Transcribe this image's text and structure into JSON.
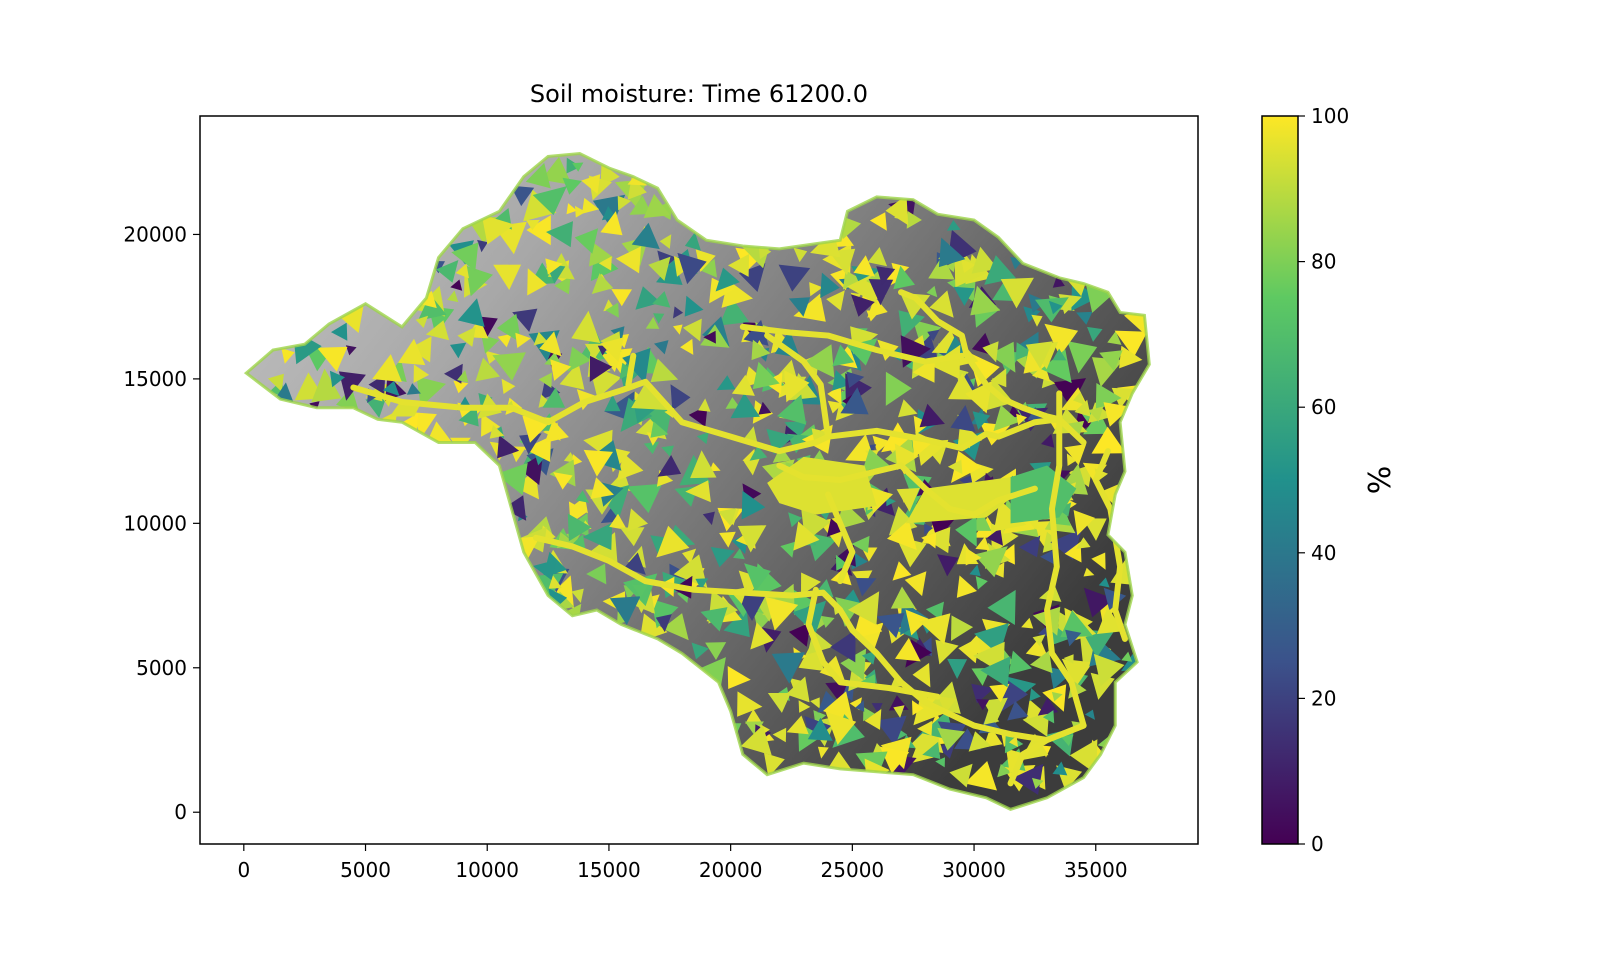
{
  "chart_data": {
    "type": "heatmap",
    "title": "Soil moisture: Time 61200.0",
    "xlabel": "",
    "ylabel": "",
    "xlim": [
      -1800,
      39200
    ],
    "ylim": [
      -1100,
      24100
    ],
    "x_ticks": [
      0,
      5000,
      10000,
      15000,
      20000,
      25000,
      30000,
      35000
    ],
    "y_ticks": [
      0,
      5000,
      10000,
      15000,
      20000
    ],
    "colorbar": {
      "label": "%",
      "colormap": "viridis",
      "range": [
        0,
        100
      ],
      "ticks": [
        0,
        20,
        40,
        60,
        80,
        100
      ],
      "colors": [
        "#440154",
        "#3b528b",
        "#21918c",
        "#5ec962",
        "#fde725"
      ]
    },
    "background": "grayscale elevation shading",
    "watershed_outline": [
      [
        100,
        15200
      ],
      [
        1200,
        16000
      ],
      [
        2500,
        16200
      ],
      [
        3500,
        16900
      ],
      [
        5000,
        17600
      ],
      [
        6500,
        16800
      ],
      [
        7500,
        17800
      ],
      [
        8000,
        19200
      ],
      [
        9000,
        20200
      ],
      [
        10500,
        20800
      ],
      [
        11500,
        22000
      ],
      [
        12500,
        22700
      ],
      [
        13800,
        22800
      ],
      [
        15000,
        22300
      ],
      [
        16000,
        22000
      ],
      [
        17000,
        21600
      ],
      [
        17800,
        20500
      ],
      [
        19000,
        19800
      ],
      [
        20500,
        19600
      ],
      [
        22000,
        19500
      ],
      [
        24500,
        19800
      ],
      [
        24800,
        20800
      ],
      [
        26000,
        21300
      ],
      [
        27500,
        21200
      ],
      [
        28500,
        20700
      ],
      [
        30000,
        20500
      ],
      [
        31000,
        19900
      ],
      [
        32000,
        19000
      ],
      [
        33500,
        18500
      ],
      [
        34500,
        18300
      ],
      [
        35500,
        18000
      ],
      [
        36000,
        17300
      ],
      [
        37000,
        17200
      ],
      [
        37200,
        15500
      ],
      [
        36500,
        14500
      ],
      [
        36000,
        13500
      ],
      [
        36200,
        11800
      ],
      [
        35800,
        11000
      ],
      [
        35500,
        9600
      ],
      [
        36200,
        9000
      ],
      [
        36500,
        7500
      ],
      [
        36200,
        6500
      ],
      [
        36700,
        5200
      ],
      [
        35800,
        4500
      ],
      [
        35800,
        3000
      ],
      [
        35200,
        2000
      ],
      [
        34500,
        1200
      ],
      [
        33000,
        500
      ],
      [
        31500,
        100
      ],
      [
        30500,
        500
      ],
      [
        29000,
        800
      ],
      [
        27500,
        1300
      ],
      [
        26000,
        1400
      ],
      [
        24500,
        1500
      ],
      [
        23000,
        1700
      ],
      [
        21500,
        1300
      ],
      [
        20500,
        2000
      ],
      [
        20000,
        3500
      ],
      [
        19500,
        4500
      ],
      [
        18000,
        5500
      ],
      [
        17000,
        6000
      ],
      [
        15500,
        6500
      ],
      [
        14500,
        7000
      ],
      [
        13500,
        6800
      ],
      [
        12500,
        7500
      ],
      [
        11500,
        9000
      ],
      [
        11000,
        10500
      ],
      [
        10500,
        12000
      ],
      [
        9500,
        12800
      ],
      [
        8000,
        12800
      ],
      [
        6500,
        13500
      ],
      [
        5500,
        13600
      ],
      [
        4500,
        14000
      ],
      [
        3000,
        14000
      ],
      [
        1500,
        14300
      ],
      [
        100,
        15200
      ]
    ],
    "streams": [
      [
        [
          4500,
          14700
        ],
        [
          6500,
          14200
        ],
        [
          9000,
          14000
        ],
        [
          11000,
          14000
        ],
        [
          12500,
          13500
        ],
        [
          14000,
          14200
        ],
        [
          15500,
          14600
        ],
        [
          16500,
          14900
        ],
        [
          18000,
          13500
        ],
        [
          20000,
          13000
        ],
        [
          22000,
          12500
        ],
        [
          23500,
          12800
        ],
        [
          24000,
          13000
        ],
        [
          26000,
          13200
        ],
        [
          28000,
          12900
        ],
        [
          29500,
          12600
        ],
        [
          30500,
          13100
        ],
        [
          31000,
          13000
        ],
        [
          32500,
          13500
        ],
        [
          33500,
          13600
        ],
        [
          34500,
          12800
        ]
      ],
      [
        [
          16000,
          15800
        ],
        [
          15800,
          14800
        ]
      ],
      [
        [
          21500,
          16500
        ],
        [
          23000,
          15600
        ],
        [
          23700,
          14800
        ],
        [
          24000,
          13000
        ]
      ],
      [
        [
          27000,
          18000
        ],
        [
          27600,
          17800
        ],
        [
          28500,
          17000
        ],
        [
          29500,
          16500
        ],
        [
          29700,
          15800
        ],
        [
          30500,
          14800
        ],
        [
          31200,
          14300
        ],
        [
          32000,
          14000
        ],
        [
          33000,
          13700
        ],
        [
          33500,
          13600
        ]
      ],
      [
        [
          20500,
          16800
        ],
        [
          22500,
          16600
        ],
        [
          24000,
          16500
        ],
        [
          26000,
          16000
        ],
        [
          28000,
          15600
        ],
        [
          29500,
          15800
        ]
      ],
      [
        [
          12000,
          9500
        ],
        [
          13500,
          9200
        ],
        [
          15000,
          8700
        ],
        [
          16500,
          8000
        ],
        [
          18500,
          7700
        ],
        [
          20500,
          7600
        ],
        [
          22500,
          7500
        ],
        [
          23800,
          7600
        ],
        [
          24500,
          7000
        ],
        [
          25000,
          6300
        ],
        [
          26000,
          5500
        ],
        [
          27000,
          4500
        ],
        [
          28000,
          3800
        ],
        [
          30000,
          3000
        ],
        [
          31500,
          2700
        ],
        [
          33000,
          2500
        ],
        [
          34500,
          3000
        ]
      ],
      [
        [
          23500,
          7700
        ],
        [
          23200,
          6500
        ],
        [
          23800,
          5200
        ],
        [
          24500,
          4500
        ],
        [
          26500,
          4300
        ],
        [
          28500,
          4000
        ]
      ],
      [
        [
          24000,
          11000
        ],
        [
          24500,
          10000
        ],
        [
          25000,
          9000
        ],
        [
          24500,
          8000
        ]
      ],
      [
        [
          33500,
          14500
        ],
        [
          33500,
          12000
        ],
        [
          33200,
          10500
        ],
        [
          33400,
          8500
        ],
        [
          33000,
          7000
        ],
        [
          33200,
          5500
        ],
        [
          34000,
          4500
        ],
        [
          34500,
          3000
        ],
        [
          33000,
          2500
        ],
        [
          32000,
          2000
        ],
        [
          31500,
          1000
        ]
      ],
      [
        [
          35500,
          12500
        ],
        [
          35000,
          11500
        ],
        [
          35600,
          10500
        ],
        [
          36000,
          8500
        ],
        [
          35800,
          7000
        ],
        [
          36200,
          6000
        ]
      ],
      [
        [
          22000,
          12000
        ],
        [
          23000,
          11600
        ],
        [
          24500,
          11500
        ],
        [
          26000,
          11800
        ],
        [
          27000,
          12000
        ],
        [
          28000,
          11200
        ],
        [
          29000,
          10500
        ],
        [
          30000,
          10300
        ],
        [
          31000,
          10800
        ],
        [
          32500,
          11200
        ]
      ]
    ],
    "wet_patches": [
      {
        "x": [
          21500,
          23000,
          25500,
          26000,
          23500,
          22000
        ],
        "y": [
          11400,
          12300,
          12000,
          10600,
          10300,
          10700
        ],
        "value": 95
      },
      {
        "x": [
          27200,
          30500,
          32000,
          31500,
          28000
        ],
        "y": [
          10000,
          10200,
          11200,
          11600,
          11200
        ],
        "value": 95
      },
      {
        "x": [
          31500,
          33500,
          34200,
          33000,
          31500
        ],
        "y": [
          10000,
          10200,
          11200,
          12000,
          11600
        ],
        "value": 70
      },
      {
        "x": [
          6000,
          7000,
          7300,
          6500
        ],
        "y": [
          13700,
          13700,
          14200,
          14300
        ],
        "value": 95
      }
    ]
  }
}
